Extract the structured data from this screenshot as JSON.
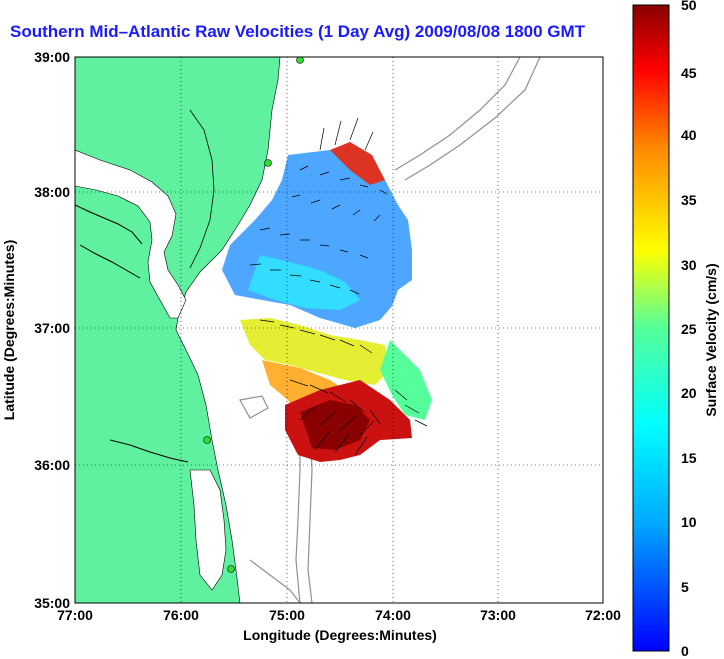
{
  "title": "Southern Mid–Atlantic Raw Velocities (1 Day Avg) 2009/08/08 1800 GMT",
  "xlabel": "Longitude (Degrees:Minutes)",
  "ylabel": "Latitude (Degrees:Minutes)",
  "x_ticks": [
    "77:00",
    "76:00",
    "75:00",
    "74:00",
    "73:00",
    "72:00"
  ],
  "y_ticks": [
    "39:00",
    "38:00",
    "37:00",
    "36:00",
    "35:00"
  ],
  "colorbar": {
    "label": "Surface Velocity (cm/s)",
    "ticks": [
      "50",
      "45",
      "40",
      "35",
      "30",
      "25",
      "20",
      "15",
      "10",
      "5",
      "0"
    ],
    "min": 0,
    "max": 50
  },
  "colors": {
    "land": "#5ff0a0",
    "title": "#1a1aff",
    "isobath": "#909090",
    "station": "#33dd33"
  },
  "chart_data": {
    "type": "map",
    "lon_range": [
      -77.0,
      -72.0
    ],
    "lat_range": [
      35.0,
      39.0
    ],
    "grid": true,
    "color_scale": "jet",
    "value_range": [
      0,
      50
    ],
    "units": "cm/s"
  }
}
